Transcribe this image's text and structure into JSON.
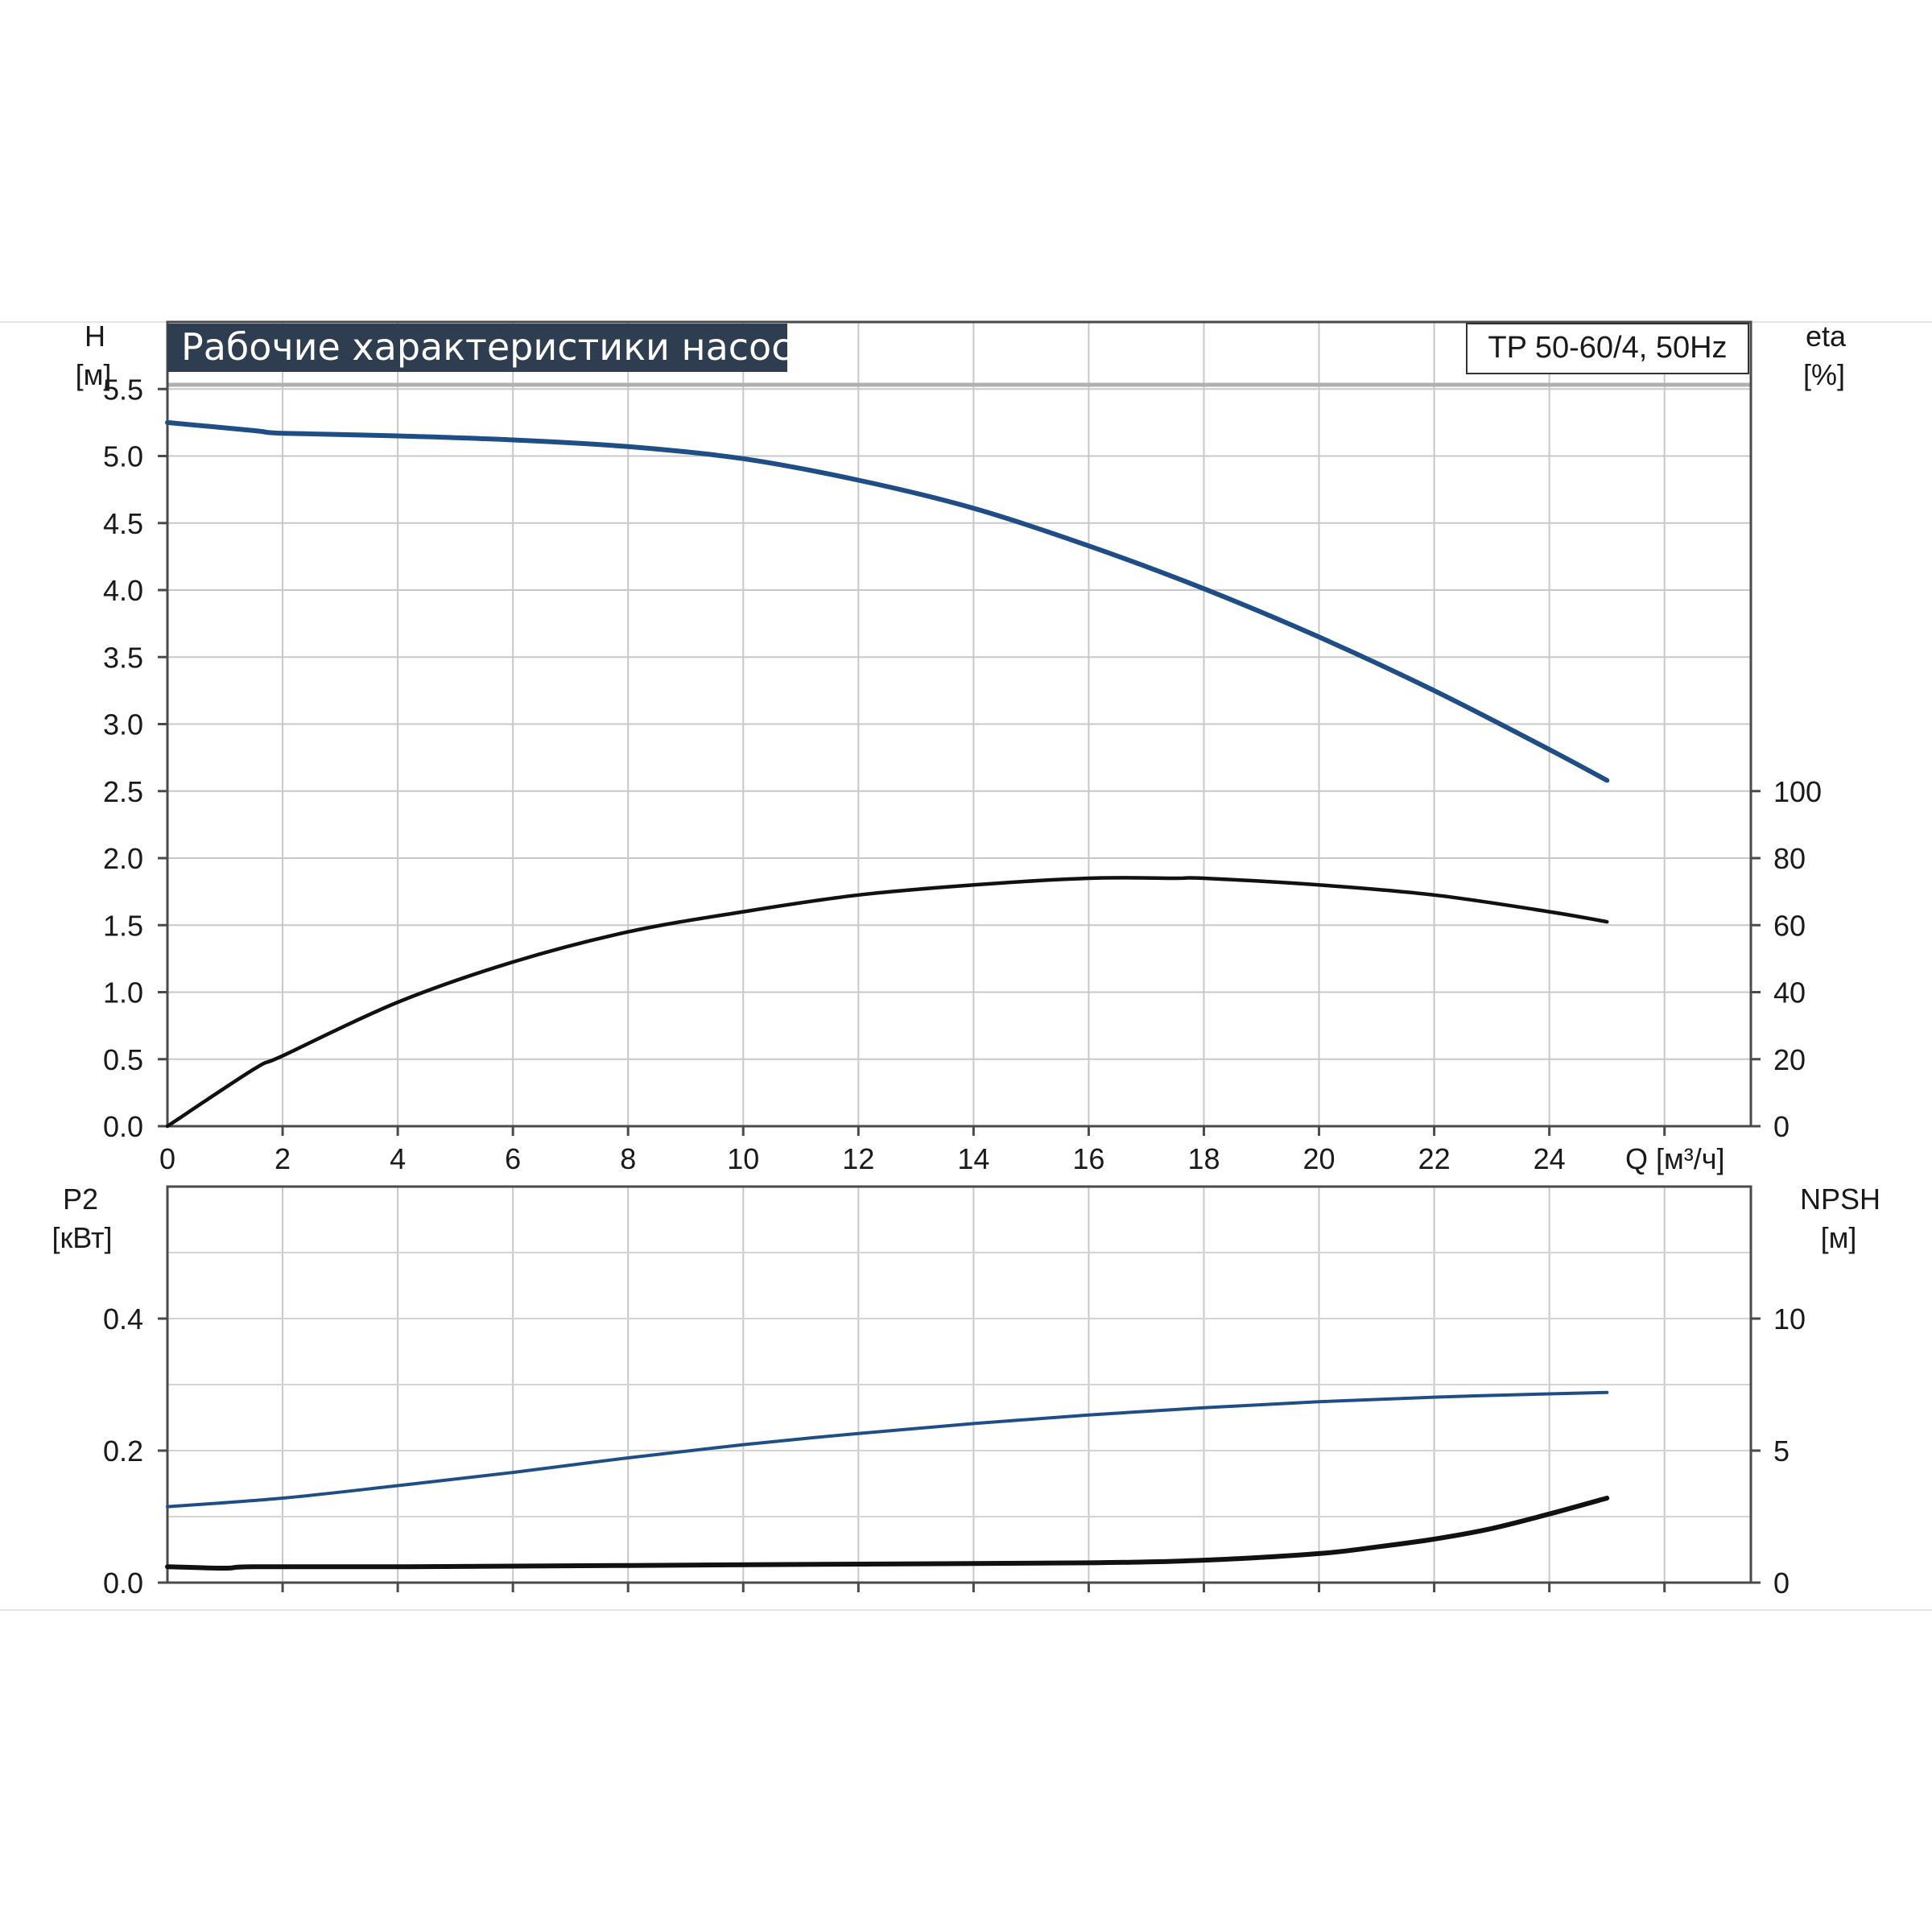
{
  "chart_data": {
    "type": "line",
    "title": "Рабочие характеристики насоса",
    "model_label": "TP 50-60/4, 50Hz",
    "x_axis": {
      "label": "Q [м³/ч]",
      "range": [
        0,
        27.5
      ],
      "ticks": [
        "0",
        "2",
        "4",
        "6",
        "8",
        "10",
        "12",
        "14",
        "16",
        "18",
        "20",
        "22",
        "24"
      ]
    },
    "top_panel": {
      "left_axis": {
        "label_line1": "H",
        "label_line2": "[м]",
        "range": [
          0,
          6.0
        ],
        "ticks": [
          "0.0",
          "0.5",
          "1.0",
          "1.5",
          "2.0",
          "2.5",
          "3.0",
          "3.5",
          "4.0",
          "4.5",
          "5.0",
          "5.5"
        ]
      },
      "right_axis": {
        "label_line1": "eta",
        "label_line2": "[%]",
        "range": [
          0,
          240
        ],
        "ticks": [
          "0",
          "20",
          "40",
          "60",
          "80",
          "100"
        ]
      },
      "series": [
        {
          "axis": "left",
          "color": "#1f4e87",
          "x": [
            0,
            1.5,
            2,
            4,
            6,
            8,
            10,
            12,
            14,
            16,
            18,
            20,
            22,
            24,
            25
          ],
          "y": [
            5.25,
            5.19,
            5.17,
            5.15,
            5.12,
            5.07,
            4.98,
            4.82,
            4.61,
            4.33,
            4.01,
            3.65,
            3.25,
            2.81,
            2.58
          ]
        },
        {
          "axis": "right",
          "color": "#111111",
          "x": [
            0,
            1.5,
            2,
            4,
            6,
            8,
            10,
            12,
            14,
            16,
            17.5,
            18,
            20,
            22,
            24,
            25
          ],
          "y": [
            0,
            17,
            21,
            37,
            49,
            58,
            64,
            69,
            72,
            74,
            74,
            74,
            72,
            69,
            64,
            61
          ]
        }
      ]
    },
    "bottom_panel": {
      "left_axis": {
        "label_line1": "P2",
        "label_line2": "[кВт]",
        "range": [
          0,
          0.6
        ],
        "ticks": [
          "0.0",
          "0.2",
          "0.4"
        ]
      },
      "right_axis": {
        "label_line1": "NPSH",
        "label_line2": "[м]",
        "range": [
          0,
          15
        ],
        "ticks": [
          "0",
          "5",
          "10"
        ]
      },
      "series": [
        {
          "axis": "left",
          "color": "#1f4e87",
          "x": [
            0,
            2,
            4,
            6,
            8,
            10,
            12,
            14,
            16,
            18,
            20,
            22,
            24,
            25
          ],
          "y": [
            0.115,
            0.128,
            0.147,
            0.167,
            0.189,
            0.209,
            0.226,
            0.241,
            0.254,
            0.265,
            0.274,
            0.281,
            0.286,
            0.288
          ]
        },
        {
          "axis": "right",
          "color": "#111111",
          "x": [
            0,
            1,
            1.5,
            4,
            8,
            12,
            16,
            18,
            20,
            21,
            22,
            23,
            24,
            25
          ],
          "y": [
            0.6,
            0.55,
            0.6,
            0.6,
            0.65,
            0.7,
            0.75,
            0.85,
            1.1,
            1.35,
            1.65,
            2.05,
            2.6,
            3.2
          ]
        }
      ]
    }
  }
}
